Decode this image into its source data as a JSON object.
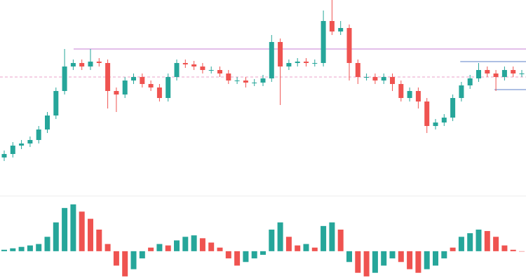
{
  "chart_data": [
    {
      "type": "candlestick",
      "up_color": "#26a69a",
      "down_color": "#ef5350",
      "open": [
        55,
        60,
        72,
        75,
        80,
        95,
        115,
        150,
        185,
        190,
        185,
        192,
        190,
        150,
        145,
        165,
        170,
        160,
        155,
        140,
        170,
        190,
        188,
        185,
        180,
        180,
        175,
        165,
        165,
        162,
        162,
        168,
        220,
        185,
        190,
        192,
        190,
        190,
        250,
        235,
        240,
        190,
        170,
        170,
        165,
        170,
        160,
        140,
        150,
        135,
        100,
        105,
        112,
        140,
        158,
        168,
        180,
        175,
        170,
        180,
        175
      ],
      "high": [
        65,
        77,
        80,
        85,
        100,
        120,
        155,
        210,
        195,
        195,
        210,
        197,
        195,
        155,
        170,
        175,
        175,
        165,
        160,
        175,
        195,
        195,
        193,
        190,
        185,
        185,
        180,
        170,
        170,
        167,
        173,
        230,
        225,
        195,
        197,
        197,
        195,
        265,
        280,
        250,
        245,
        195,
        175,
        175,
        175,
        175,
        165,
        155,
        155,
        140,
        110,
        117,
        145,
        163,
        173,
        190,
        185,
        180,
        185,
        185,
        180
      ],
      "low": [
        50,
        55,
        67,
        70,
        75,
        90,
        110,
        145,
        180,
        180,
        180,
        185,
        125,
        120,
        140,
        160,
        155,
        150,
        135,
        135,
        165,
        183,
        180,
        175,
        175,
        170,
        160,
        160,
        155,
        157,
        157,
        163,
        130,
        180,
        185,
        185,
        185,
        185,
        230,
        230,
        165,
        160,
        165,
        160,
        160,
        150,
        135,
        135,
        125,
        90,
        95,
        100,
        107,
        135,
        153,
        163,
        170,
        150,
        165,
        170,
        170
      ],
      "close": [
        60,
        72,
        75,
        80,
        95,
        115,
        150,
        185,
        190,
        185,
        192,
        190,
        150,
        145,
        165,
        170,
        160,
        155,
        140,
        170,
        190,
        188,
        185,
        180,
        180,
        175,
        165,
        165,
        162,
        162,
        168,
        220,
        185,
        190,
        192,
        190,
        190,
        250,
        235,
        240,
        190,
        170,
        170,
        165,
        170,
        160,
        140,
        150,
        135,
        100,
        105,
        112,
        140,
        158,
        168,
        180,
        175,
        170,
        180,
        175,
        175
      ],
      "ylim": [
        0,
        280
      ],
      "levels": [
        {
          "value": 210,
          "color": "#c77dd6"
        },
        {
          "value": 170,
          "color": "#e8a0c8"
        },
        {
          "value": 192,
          "color": "#5b7fc7"
        },
        {
          "value": 152,
          "color": "#5b7fc7"
        }
      ]
    },
    {
      "type": "histogram-oscillator",
      "up_color": "#26a69a",
      "down_color": "#ef5350",
      "values": [
        2,
        4,
        6,
        8,
        10,
        20,
        40,
        60,
        65,
        55,
        45,
        30,
        10,
        -20,
        -35,
        -25,
        -10,
        5,
        10,
        8,
        15,
        20,
        22,
        18,
        12,
        5,
        -10,
        -20,
        -15,
        -10,
        -5,
        30,
        40,
        20,
        8,
        10,
        5,
        35,
        40,
        30,
        -15,
        -30,
        -35,
        -30,
        -20,
        -10,
        -15,
        -25,
        -30,
        -25,
        -20,
        -10,
        5,
        20,
        25,
        30,
        28,
        20,
        8,
        2,
        0
      ],
      "ylim": [
        -40,
        65
      ]
    }
  ]
}
